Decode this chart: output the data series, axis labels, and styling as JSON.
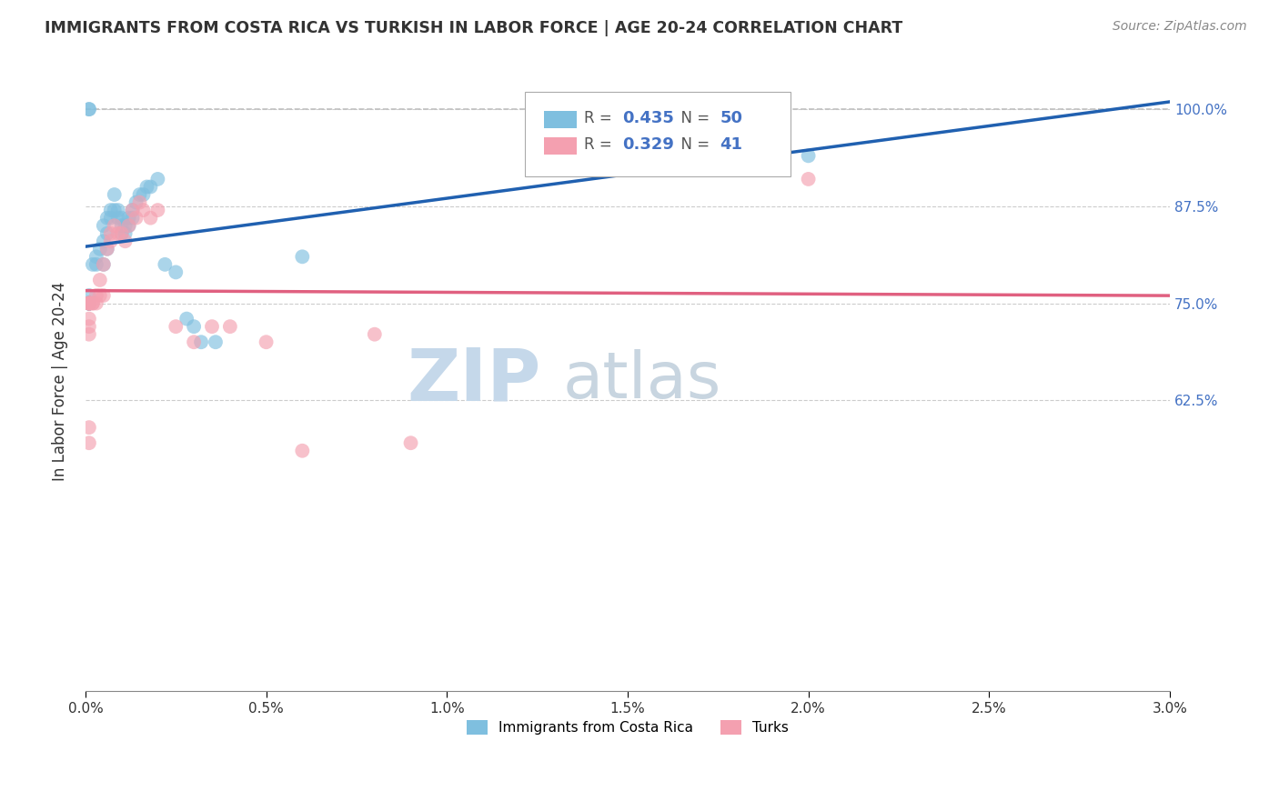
{
  "title": "IMMIGRANTS FROM COSTA RICA VS TURKISH IN LABOR FORCE | AGE 20-24 CORRELATION CHART",
  "source": "Source: ZipAtlas.com",
  "ylabel_label": "In Labor Force | Age 20-24",
  "xlim": [
    0.0,
    0.03
  ],
  "ylim": [
    0.25,
    1.05
  ],
  "blue_R": 0.435,
  "blue_N": 50,
  "pink_R": 0.329,
  "pink_N": 41,
  "blue_color": "#7fbfdf",
  "pink_color": "#f4a0b0",
  "blue_line_color": "#2060b0",
  "pink_line_color": "#e06080",
  "diagonal_color": "#c0c0c0",
  "watermark_zip_color": "#c5d8ea",
  "watermark_atlas_color": "#c8d5e0",
  "background": "#ffffff",
  "blue_x": [
    0.0002,
    0.0003,
    0.0003,
    0.0004,
    0.0005,
    0.0005,
    0.0005,
    0.0006,
    0.0006,
    0.0006,
    0.0007,
    0.0007,
    0.0008,
    0.0008,
    0.0009,
    0.0009,
    0.001,
    0.001,
    0.001,
    0.0011,
    0.0011,
    0.0012,
    0.0012,
    0.0013,
    0.0013,
    0.0014,
    0.0015,
    0.0016,
    0.0017,
    0.0018,
    0.002,
    0.0022,
    0.0025,
    0.0028,
    0.003,
    0.0032,
    0.0036,
    0.0001,
    0.0001,
    0.0001,
    0.0001,
    0.0001,
    0.0001,
    0.0001,
    0.0001,
    0.014,
    0.02,
    0.0001,
    0.0001,
    0.006
  ],
  "blue_y": [
    0.8,
    0.81,
    0.8,
    0.82,
    0.85,
    0.83,
    0.8,
    0.86,
    0.84,
    0.82,
    0.87,
    0.86,
    0.89,
    0.87,
    0.87,
    0.86,
    0.86,
    0.85,
    0.84,
    0.85,
    0.84,
    0.86,
    0.85,
    0.87,
    0.86,
    0.88,
    0.89,
    0.89,
    0.9,
    0.9,
    0.91,
    0.8,
    0.79,
    0.73,
    0.72,
    0.7,
    0.7,
    0.75,
    0.76,
    0.75,
    0.75,
    0.75,
    0.75,
    0.75,
    0.75,
    1.0,
    0.94,
    1.0,
    1.0,
    0.81
  ],
  "pink_x": [
    0.0001,
    0.0001,
    0.0001,
    0.0001,
    0.0002,
    0.0002,
    0.0003,
    0.0003,
    0.0004,
    0.0004,
    0.0005,
    0.0005,
    0.0006,
    0.0007,
    0.0007,
    0.0008,
    0.0009,
    0.001,
    0.0011,
    0.0012,
    0.0013,
    0.0014,
    0.0015,
    0.0016,
    0.0018,
    0.002,
    0.0025,
    0.0001,
    0.0001,
    0.003,
    0.0035,
    0.005,
    0.004,
    0.0001,
    0.0001,
    0.0001,
    0.0001,
    0.02,
    0.008,
    0.009,
    0.006
  ],
  "pink_y": [
    0.75,
    0.75,
    0.75,
    0.75,
    0.75,
    0.75,
    0.76,
    0.75,
    0.78,
    0.76,
    0.8,
    0.76,
    0.82,
    0.84,
    0.83,
    0.85,
    0.84,
    0.84,
    0.83,
    0.85,
    0.87,
    0.86,
    0.88,
    0.87,
    0.86,
    0.87,
    0.72,
    0.73,
    0.75,
    0.7,
    0.72,
    0.7,
    0.72,
    0.72,
    0.71,
    0.59,
    0.57,
    0.91,
    0.71,
    0.57,
    0.56
  ]
}
